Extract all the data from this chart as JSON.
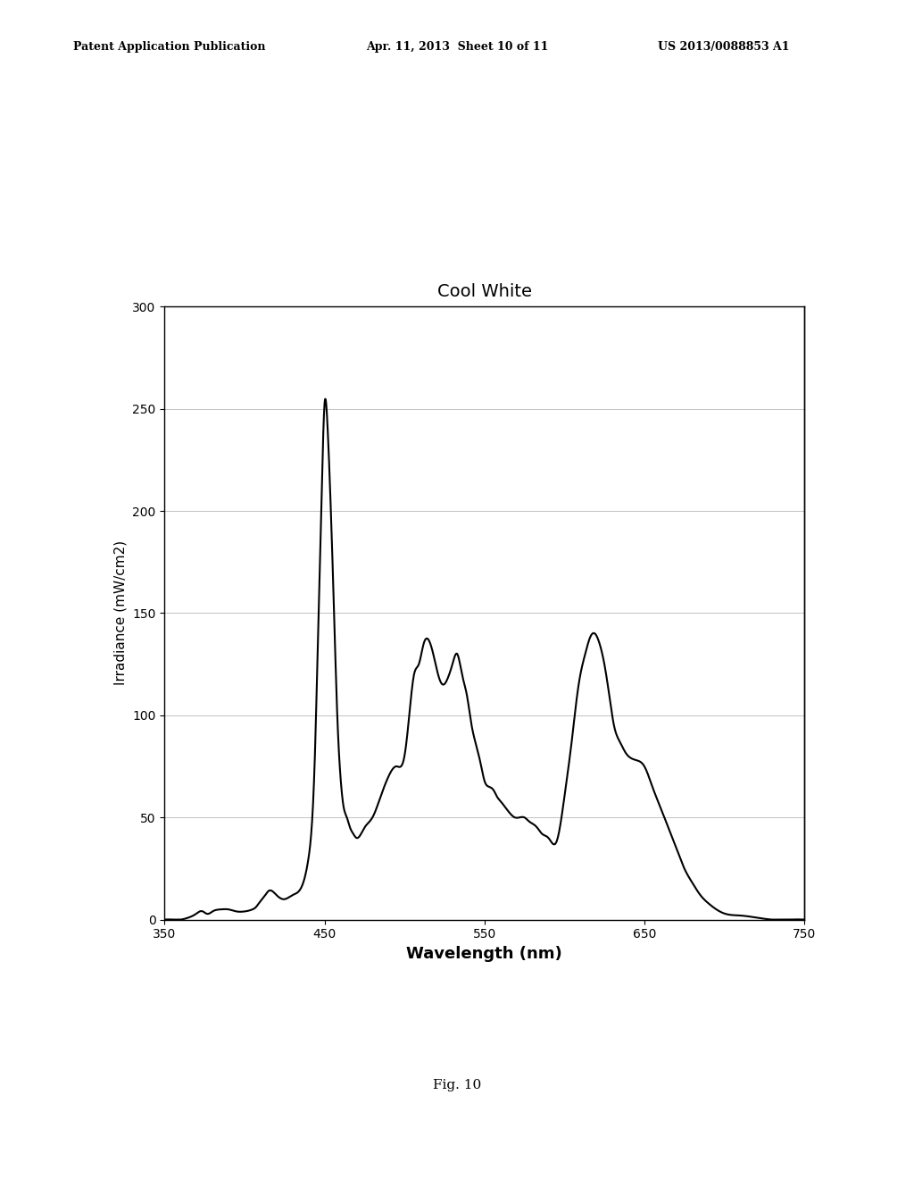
{
  "title": "Cool White",
  "xlabel": "Wavelength (nm)",
  "ylabel": "Irradiance (mW/cm2)",
  "xlim": [
    350,
    750
  ],
  "ylim": [
    0,
    300
  ],
  "xticks": [
    350,
    450,
    550,
    650,
    750
  ],
  "yticks": [
    0,
    50,
    100,
    150,
    200,
    250,
    300
  ],
  "line_color": "#000000",
  "background_color": "#ffffff",
  "header_left": "Patent Application Publication",
  "header_center": "Apr. 11, 2013  Sheet 10 of 11",
  "header_right": "US 2013/0088853 A1",
  "footer": "Fig. 10",
  "curve_points": {
    "x": [
      350,
      355,
      360,
      365,
      368,
      370,
      372,
      374,
      376,
      378,
      380,
      385,
      390,
      395,
      400,
      405,
      407,
      409,
      411,
      413,
      415,
      420,
      425,
      430,
      435,
      440,
      444,
      446,
      448,
      450,
      452,
      454,
      456,
      458,
      460,
      462,
      464,
      466,
      468,
      470,
      475,
      480,
      485,
      490,
      495,
      500,
      503,
      506,
      509,
      512,
      515,
      518,
      521,
      524,
      527,
      530,
      533,
      536,
      539,
      542,
      545,
      548,
      550,
      553,
      556,
      558,
      560,
      563,
      566,
      569,
      572,
      575,
      578,
      580,
      583,
      586,
      590,
      595,
      600,
      605,
      608,
      610,
      613,
      616,
      619,
      622,
      625,
      628,
      631,
      634,
      636,
      638,
      640,
      645,
      650,
      655,
      660,
      665,
      670,
      675,
      680,
      685,
      690,
      695,
      700,
      710,
      720,
      730,
      740,
      750
    ],
    "y": [
      0,
      0,
      0,
      1,
      2,
      3,
      4,
      4,
      3,
      3,
      4,
      5,
      5,
      4,
      4,
      5,
      6,
      8,
      10,
      12,
      14,
      12,
      10,
      12,
      15,
      30,
      80,
      140,
      200,
      252,
      240,
      200,
      150,
      100,
      70,
      55,
      50,
      45,
      42,
      40,
      45,
      50,
      60,
      70,
      75,
      80,
      100,
      120,
      125,
      135,
      137,
      130,
      120,
      115,
      118,
      125,
      130,
      120,
      110,
      95,
      85,
      75,
      68,
      65,
      63,
      60,
      58,
      55,
      52,
      50,
      50,
      50,
      48,
      47,
      45,
      42,
      40,
      38,
      60,
      90,
      110,
      120,
      130,
      138,
      140,
      135,
      125,
      110,
      95,
      88,
      85,
      82,
      80,
      78,
      75,
      65,
      55,
      45,
      35,
      25,
      18,
      12,
      8,
      5,
      3,
      2,
      1,
      0,
      0,
      0
    ]
  }
}
